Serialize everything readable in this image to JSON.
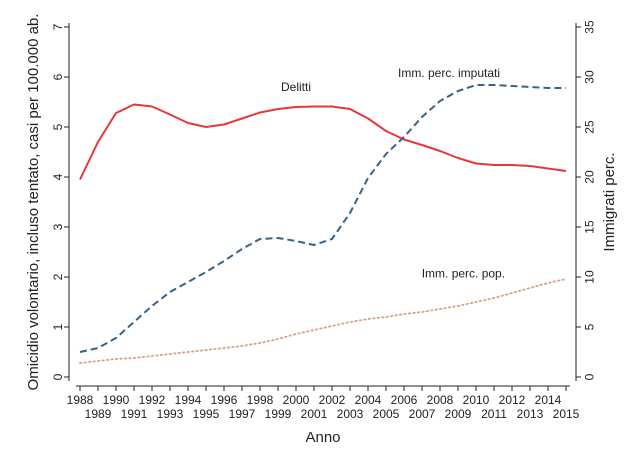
{
  "chart_data": {
    "type": "line",
    "title": "",
    "xlabel": "Anno",
    "ylabel_left": "Omicidio volontario, incluso tentato, casi per 100.000 ab.",
    "ylabel_right": "Immigrati perc.",
    "x": [
      1988,
      1989,
      1990,
      1991,
      1992,
      1993,
      1994,
      1995,
      1996,
      1997,
      1998,
      1999,
      2000,
      2001,
      2002,
      2003,
      2004,
      2005,
      2006,
      2007,
      2008,
      2009,
      2010,
      2011,
      2012,
      2013,
      2014,
      2015
    ],
    "xlim": [
      1988,
      2015
    ],
    "ylim_left": [
      0,
      7
    ],
    "ylim_right": [
      0,
      35
    ],
    "y_ticks_left": [
      0,
      1,
      2,
      3,
      4,
      5,
      6,
      7
    ],
    "y_ticks_right": [
      0,
      5,
      10,
      15,
      20,
      25,
      30,
      35
    ],
    "grid": false,
    "series": [
      {
        "name": "Delitti",
        "axis": "left",
        "style": "solid",
        "color": "#e8363a",
        "values": [
          3.95,
          4.7,
          5.28,
          5.45,
          5.41,
          5.25,
          5.08,
          5.0,
          5.05,
          5.17,
          5.29,
          5.36,
          5.4,
          5.41,
          5.41,
          5.36,
          5.17,
          4.92,
          4.75,
          4.64,
          4.52,
          4.38,
          4.27,
          4.24,
          4.24,
          4.22,
          4.17,
          4.12
        ]
      },
      {
        "name": "Imm. perc. imputati",
        "axis": "right",
        "style": "dashed",
        "color": "#3a6186",
        "values": [
          2.5,
          2.9,
          3.9,
          5.5,
          7.1,
          8.5,
          9.5,
          10.5,
          11.6,
          12.8,
          13.8,
          13.9,
          13.6,
          13.2,
          13.8,
          16.4,
          19.9,
          22.3,
          24.0,
          26.0,
          27.6,
          28.6,
          29.2,
          29.2,
          29.1,
          29.0,
          28.9,
          28.9
        ]
      },
      {
        "name": "Imm. perc. pop.",
        "axis": "right",
        "style": "dotted",
        "color": "#d9a08f",
        "values": [
          1.4,
          1.6,
          1.8,
          1.9,
          2.1,
          2.3,
          2.5,
          2.7,
          2.9,
          3.1,
          3.4,
          3.8,
          4.3,
          4.7,
          5.1,
          5.5,
          5.8,
          6.0,
          6.3,
          6.5,
          6.8,
          7.1,
          7.5,
          7.9,
          8.4,
          8.9,
          9.4,
          9.8
        ]
      }
    ],
    "annotations": [
      {
        "text": "Delitti",
        "x": 2000,
        "y": 5.72,
        "axis": "left"
      },
      {
        "text": "Imm. perc. imputati",
        "x": 2008.5,
        "y": 30.0,
        "axis": "right"
      },
      {
        "text": "Imm. perc. pop.",
        "x": 2009.3,
        "y": 9.95,
        "axis": "right"
      }
    ]
  }
}
